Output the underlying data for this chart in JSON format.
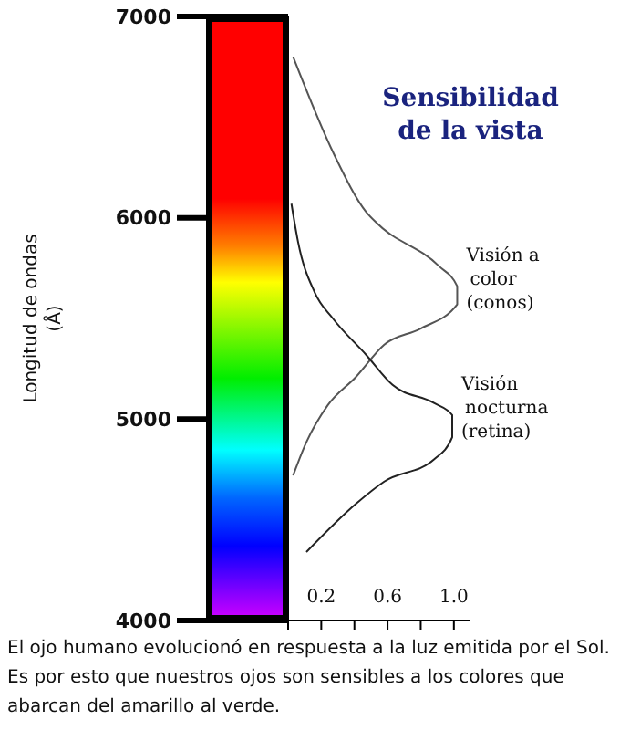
{
  "chart_data": {
    "type": "line",
    "title": "Sensibilidad de la vista",
    "ylabel": "Longitud de ondas (Å)",
    "series": [
      {
        "name": "Visión a color (conos)",
        "color": "#555555",
        "x": [
          0.03,
          0.28,
          0.47,
          0.54,
          0.91,
          1.02,
          1.02,
          0.8,
          0.58,
          0.41,
          0.24,
          0.11,
          0.03
        ],
        "values": [
          6800,
          6310,
          6030,
          5970,
          5760,
          5660,
          5570,
          5450,
          5370,
          5210,
          5070,
          4885,
          4720
        ]
      },
      {
        "name": "Visión nocturna (retina)",
        "color": "#222222",
        "x": [
          0.02,
          0.06,
          0.16,
          0.27,
          0.47,
          0.63,
          0.88,
          0.99,
          0.99,
          0.88,
          0.58,
          0.41,
          0.11
        ],
        "values": [
          6070,
          5880,
          5630,
          5500,
          5320,
          5170,
          5080,
          5020,
          4910,
          4800,
          4690,
          4580,
          4340
        ]
      }
    ],
    "xlim": [
      0,
      1.1
    ],
    "xticks": [
      {
        "value": 0,
        "label": null
      },
      0.2,
      {
        "value": 0.4,
        "label": null
      },
      0.6,
      {
        "value": 0.8,
        "label": null
      },
      {
        "value": 1,
        "label": "1.0"
      }
    ],
    "ylim": [
      4000,
      7000
    ],
    "yticks": [
      4000,
      5000,
      6000,
      7000
    ],
    "marker": "none",
    "line_style": "solid",
    "grid": false,
    "legend": false,
    "annotations": [
      "El ojo humano evolucionó en respuesta a la luz emitida por el Sol. Es por esto que nuestros ojos son sensibles a los colores que abarcan del amarillo al verde."
    ]
  }
}
